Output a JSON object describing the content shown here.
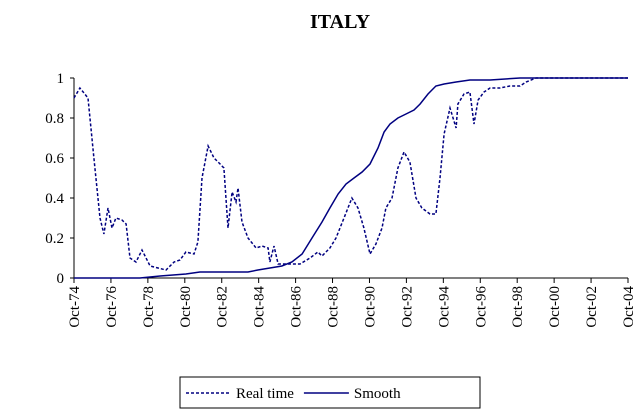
{
  "chart_data": {
    "type": "line",
    "title": "ITALY",
    "xlim": [
      1974.75,
      2004.75
    ],
    "xticks": [
      {
        "value": 1974.75,
        "label": "Oct-74"
      },
      {
        "value": 1976.75,
        "label": "Oct-76"
      },
      {
        "value": 1978.75,
        "label": "Oct-78"
      },
      {
        "value": 1980.75,
        "label": "Oct-80"
      },
      {
        "value": 1982.75,
        "label": "Oct-82"
      },
      {
        "value": 1984.75,
        "label": "Oct-84"
      },
      {
        "value": 1986.75,
        "label": "Oct-86"
      },
      {
        "value": 1988.75,
        "label": "Oct-88"
      },
      {
        "value": 1990.75,
        "label": "Oct-90"
      },
      {
        "value": 1992.75,
        "label": "Oct-92"
      },
      {
        "value": 1994.75,
        "label": "Oct-94"
      },
      {
        "value": 1996.75,
        "label": "Oct-96"
      },
      {
        "value": 1998.75,
        "label": "Oct-98"
      },
      {
        "value": 2000.75,
        "label": "Oct-00"
      },
      {
        "value": 2002.75,
        "label": "Oct-02"
      },
      {
        "value": 2004.75,
        "label": "Oct-04"
      }
    ],
    "ylim": [
      0,
      1
    ],
    "yticks": [
      0,
      0.2,
      0.4,
      0.6,
      0.8,
      1
    ],
    "grid": false,
    "legend": "bottom",
    "series": [
      {
        "name": "Real time",
        "color": "#000080",
        "dash": true,
        "x": [
          1974.75,
          1975.07,
          1975.51,
          1975.83,
          1976.16,
          1976.37,
          1976.59,
          1976.81,
          1977.02,
          1977.35,
          1977.57,
          1977.78,
          1978.11,
          1978.43,
          1978.87,
          1979.3,
          1979.73,
          1980.17,
          1980.49,
          1980.81,
          1981.25,
          1981.46,
          1981.68,
          1982.01,
          1982.33,
          1982.66,
          1982.87,
          1983.09,
          1983.31,
          1983.52,
          1983.63,
          1983.85,
          1984.17,
          1984.61,
          1984.93,
          1985.26,
          1985.36,
          1985.58,
          1985.8,
          1986.45,
          1986.99,
          1987.53,
          1987.96,
          1988.18,
          1988.61,
          1988.94,
          1989.37,
          1989.8,
          1990.13,
          1990.45,
          1990.78,
          1991.1,
          1991.43,
          1991.64,
          1991.97,
          1992.29,
          1992.62,
          1992.94,
          1993.27,
          1993.59,
          1994.03,
          1994.35,
          1994.57,
          1994.79,
          1995.11,
          1995.44,
          1995.54,
          1995.87,
          1996.19,
          1996.41,
          1996.63,
          1996.95,
          1997.28,
          1997.82,
          1998.36,
          1998.9,
          1999.23,
          1999.77,
          2001.07,
          2004.75
        ],
        "values": [
          0.9,
          0.95,
          0.9,
          0.6,
          0.3,
          0.22,
          0.35,
          0.25,
          0.3,
          0.29,
          0.27,
          0.1,
          0.08,
          0.14,
          0.06,
          0.05,
          0.04,
          0.08,
          0.09,
          0.13,
          0.12,
          0.18,
          0.5,
          0.66,
          0.6,
          0.57,
          0.55,
          0.25,
          0.43,
          0.38,
          0.45,
          0.28,
          0.2,
          0.15,
          0.16,
          0.15,
          0.08,
          0.16,
          0.07,
          0.07,
          0.07,
          0.1,
          0.13,
          0.11,
          0.15,
          0.2,
          0.3,
          0.4,
          0.35,
          0.25,
          0.12,
          0.17,
          0.25,
          0.35,
          0.4,
          0.55,
          0.63,
          0.58,
          0.4,
          0.35,
          0.32,
          0.32,
          0.5,
          0.72,
          0.85,
          0.75,
          0.87,
          0.92,
          0.93,
          0.77,
          0.89,
          0.93,
          0.95,
          0.95,
          0.96,
          0.96,
          0.98,
          1,
          1,
          1
        ]
      },
      {
        "name": "Smooth",
        "color": "#000080",
        "dash": false,
        "x": [
          1974.75,
          1978.32,
          1979.41,
          1980.81,
          1981.57,
          1984.17,
          1984.71,
          1985.36,
          1986.01,
          1986.55,
          1987.1,
          1987.64,
          1988.18,
          1988.61,
          1989.05,
          1989.48,
          1989.91,
          1990.35,
          1990.78,
          1991.21,
          1991.54,
          1991.86,
          1992.29,
          1992.73,
          1993.16,
          1993.49,
          1993.92,
          1994.35,
          1994.79,
          1995.44,
          1996.19,
          1997.28,
          1998.9,
          2004.75
        ],
        "values": [
          0,
          0,
          0.01,
          0.02,
          0.03,
          0.03,
          0.04,
          0.05,
          0.06,
          0.08,
          0.12,
          0.2,
          0.28,
          0.35,
          0.42,
          0.47,
          0.5,
          0.53,
          0.57,
          0.65,
          0.73,
          0.77,
          0.8,
          0.82,
          0.84,
          0.87,
          0.92,
          0.96,
          0.97,
          0.98,
          0.99,
          0.99,
          1,
          1
        ]
      }
    ]
  }
}
